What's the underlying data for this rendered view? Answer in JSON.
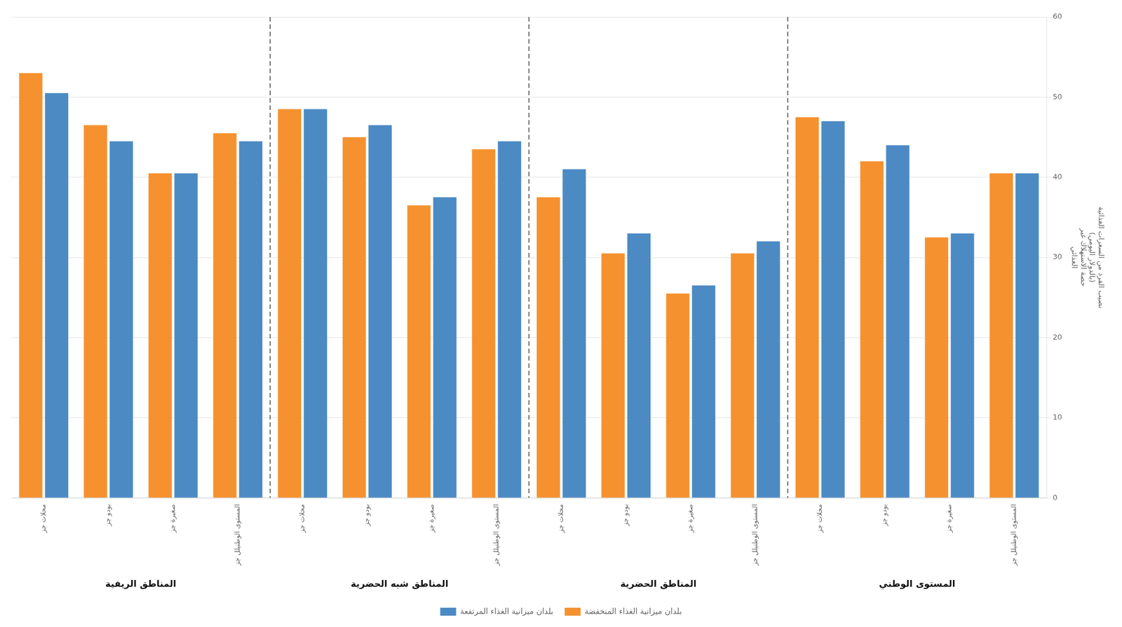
{
  "chart_data": {
    "type": "bar",
    "categories": [
      "محلات جز",
      "بودو جز",
      "صغيرة جز",
      "المستوى الوطنيلل جز",
      "محلات جز",
      "بودو جز",
      "صغيرة جز",
      "المستوى الوطنيلل جز",
      "محلات جز",
      "بودو جز",
      "صغيرة جز",
      "المستوى الوطنيلل جز",
      "محلات جز",
      "بودو جز",
      "صغيرة جز",
      "المستوى الوطنيلل جز"
    ],
    "groups": [
      "المناطق الريفية",
      "المناطق شبه الحضرية",
      "المناطق الحضرية",
      "المستوى الوطني"
    ],
    "series": [
      {
        "name": "بلدان ميزانية الغذاء المنخفضة",
        "color": "#F5922F",
        "values": [
          53.0,
          46.5,
          40.5,
          45.5,
          48.5,
          45.0,
          36.5,
          43.5,
          37.5,
          30.5,
          25.5,
          30.5,
          47.5,
          42.0,
          32.5,
          40.5
        ]
      },
      {
        "name": "بلدان ميزانية الغذاء المرتفعة",
        "color": "#4C8AC4",
        "values": [
          50.5,
          44.5,
          40.5,
          44.5,
          48.5,
          46.5,
          37.5,
          44.5,
          41.0,
          33.0,
          26.5,
          32.0,
          47.0,
          44.0,
          33.0,
          40.5
        ]
      }
    ],
    "ylabel": [
      "نصيب الفرد من السعرات الغذائية",
      "(بالدولار اليومي)",
      "حصة الاستهلاك غير",
      "الغذائي"
    ],
    "ylim": [
      0,
      60
    ],
    "yticks": [
      0,
      10,
      20,
      30,
      40,
      50,
      60
    ],
    "grid": true,
    "legend": "bottom"
  }
}
